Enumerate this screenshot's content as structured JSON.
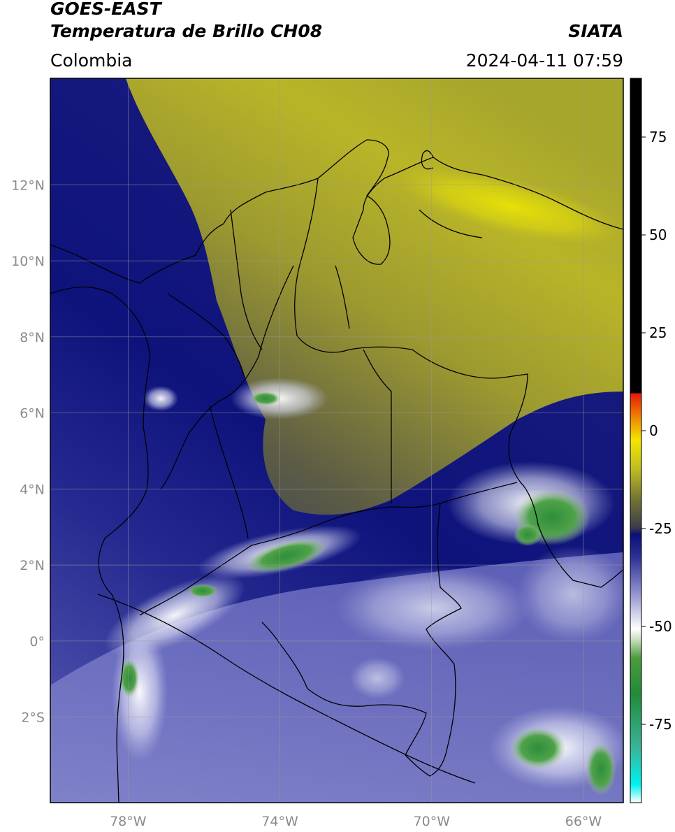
{
  "header": {
    "title_line1": "GOES-EAST",
    "title_line2": "Temperatura de Brillo CH08",
    "region": "Colombia",
    "agency": "SIATA",
    "datetime": "2024-04-11 07:59"
  },
  "map": {
    "lat_range": [
      -4.25,
      14.8
    ],
    "lon_range": [
      -80.05,
      -64.95
    ],
    "lat_ticks": [
      {
        "value": 12,
        "label": "12°N"
      },
      {
        "value": 10,
        "label": "10°N"
      },
      {
        "value": 8,
        "label": "8°N"
      },
      {
        "value": 6,
        "label": "6°N"
      },
      {
        "value": 4,
        "label": "4°N"
      },
      {
        "value": 2,
        "label": "2°N"
      },
      {
        "value": 0,
        "label": "0°"
      },
      {
        "value": -2,
        "label": "2°S"
      }
    ],
    "lon_ticks": [
      {
        "value": -78,
        "label": "78°W"
      },
      {
        "value": -74,
        "label": "74°W"
      },
      {
        "value": -70,
        "label": "70°W"
      },
      {
        "value": -66,
        "label": "66°W"
      }
    ],
    "gridlines": true
  },
  "colorbar": {
    "range": [
      -95,
      90
    ],
    "ticks": [
      {
        "value": 75,
        "label": "75"
      },
      {
        "value": 50,
        "label": "50"
      },
      {
        "value": 25,
        "label": "25"
      },
      {
        "value": 0,
        "label": "0"
      },
      {
        "value": -25,
        "label": "-25"
      },
      {
        "value": -50,
        "label": "-50"
      },
      {
        "value": -75,
        "label": "-75"
      }
    ],
    "colors": {
      "black": "#000000",
      "red": "#e8180a",
      "orange": "#f08c00",
      "yellow": "#f2e600",
      "olive": "#b6b12a",
      "grey": "#3c3c46",
      "navy": "#0a0f7a",
      "blue": "#4b4ea8",
      "lavender": "#9a9cd2",
      "white": "#ffffff",
      "lightgreen": "#8fb878",
      "green": "#2d8a2d",
      "teal": "#2aa882",
      "cyan": "#00e5e5"
    }
  }
}
